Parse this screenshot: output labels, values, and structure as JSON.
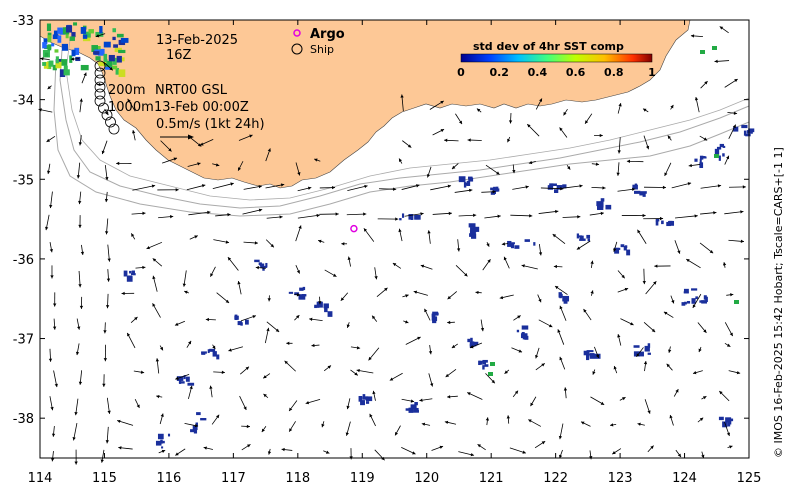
{
  "map": {
    "date_label": "13-Feb-2025",
    "hour_label": "16Z",
    "argo_label": "Argo",
    "ship_label": "Ship",
    "depth_200": "200m",
    "depth_1000": "1000m",
    "product_label": "NRT00 GSL",
    "product_time": "13-Feb 00:00Z",
    "scale_label": "0.5m/s (1kt 24h)",
    "colorbar": {
      "title": "std dev of 4hr SST comp",
      "ticks": [
        "0",
        "0.2",
        "0.4",
        "0.6",
        "0.8",
        "1"
      ]
    },
    "x_ticks": [
      "114",
      "115",
      "116",
      "117",
      "118",
      "119",
      "120",
      "121",
      "122",
      "123",
      "124",
      "125"
    ],
    "y_ticks": [
      "-33",
      "-34",
      "-35",
      "-36",
      "-37",
      "-38"
    ],
    "credit": "© IMOS 16-Feb-2025 15:42 Hobart; Tscale=CARS+[-1 1]",
    "colors": {
      "land": "#fdc896",
      "ocean": "#ffffff",
      "sst_low": "#1a2f9c",
      "argo": "#e000e0"
    },
    "argo_float": {
      "lon": 118.87,
      "lat": -35.62
    }
  }
}
